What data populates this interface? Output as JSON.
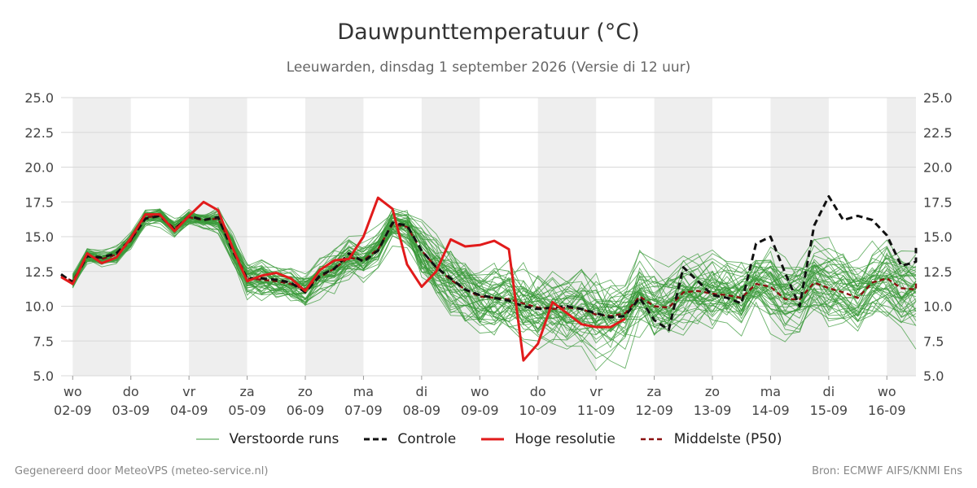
{
  "header": {
    "title": "Dauwpunttemperatuur (°C)",
    "subtitle": "Leeuwarden, dinsdag  1 september 2026 (Versie di 12 uur)"
  },
  "footer": {
    "left": "Gegenereerd door MeteoVPS (meteo-service.nl)",
    "right": "Bron: ECMWF AIFS/KNMI Ens"
  },
  "legend": {
    "items": [
      {
        "label": "Verstoorde runs",
        "color": "#3a9a3a",
        "style": "thin"
      },
      {
        "label": "Controle",
        "color": "#111111",
        "style": "dashed"
      },
      {
        "label": "Hoge resolutie",
        "color": "#e11b1b",
        "style": "solid"
      },
      {
        "label": "Middelste (P50)",
        "color": "#8b1010",
        "style": "dashed"
      }
    ]
  },
  "chart_data": {
    "type": "line",
    "title": "Dauwpunttemperatuur (°C)",
    "ylim": [
      5.0,
      25.0
    ],
    "yticks": [
      "5.0",
      "7.5",
      "10.0",
      "12.5",
      "15.0",
      "17.5",
      "20.0",
      "22.5",
      "25.0"
    ],
    "x_start_day": -0.2,
    "x_end_day": 14.5,
    "day_labels": [
      {
        "dow": "wo",
        "date": "02-09"
      },
      {
        "dow": "do",
        "date": "03-09"
      },
      {
        "dow": "vr",
        "date": "04-09"
      },
      {
        "dow": "za",
        "date": "05-09"
      },
      {
        "dow": "zo",
        "date": "06-09"
      },
      {
        "dow": "ma",
        "date": "07-09"
      },
      {
        "dow": "di",
        "date": "08-09"
      },
      {
        "dow": "wo",
        "date": "09-09"
      },
      {
        "dow": "do",
        "date": "10-09"
      },
      {
        "dow": "vr",
        "date": "11-09"
      },
      {
        "dow": "za",
        "date": "12-09"
      },
      {
        "dow": "zo",
        "date": "13-09"
      },
      {
        "dow": "ma",
        "date": "14-09"
      },
      {
        "dow": "di",
        "date": "15-09"
      },
      {
        "dow": "wo",
        "date": "16-09"
      }
    ],
    "grid": true,
    "legend_position": "bottom",
    "series": [
      {
        "name": "Controle",
        "color": "#111111",
        "style": "dashed",
        "points": [
          [
            -0.25,
            12.3
          ],
          [
            -0.0,
            11.7
          ],
          [
            0.25,
            13.6
          ],
          [
            0.5,
            13.5
          ],
          [
            0.75,
            13.8
          ],
          [
            1.0,
            14.8
          ],
          [
            1.25,
            16.3
          ],
          [
            1.5,
            16.5
          ],
          [
            1.75,
            15.5
          ],
          [
            2.0,
            16.5
          ],
          [
            2.25,
            16.2
          ],
          [
            2.5,
            16.4
          ],
          [
            2.75,
            14.0
          ],
          [
            3.0,
            12.0
          ],
          [
            3.25,
            12.0
          ],
          [
            3.5,
            11.9
          ],
          [
            3.75,
            11.7
          ],
          [
            4.0,
            11.0
          ],
          [
            4.25,
            12.2
          ],
          [
            4.5,
            12.7
          ],
          [
            4.75,
            13.8
          ],
          [
            5.0,
            13.2
          ],
          [
            5.25,
            14.0
          ],
          [
            5.5,
            16.0
          ],
          [
            5.75,
            15.8
          ],
          [
            6.0,
            14.0
          ],
          [
            6.25,
            12.8
          ],
          [
            6.5,
            12.0
          ],
          [
            6.75,
            11.2
          ],
          [
            7.0,
            10.8
          ],
          [
            7.25,
            10.6
          ],
          [
            7.5,
            10.4
          ],
          [
            7.75,
            10.0
          ],
          [
            8.0,
            9.8
          ],
          [
            8.25,
            9.9
          ],
          [
            8.5,
            10.0
          ],
          [
            8.75,
            9.8
          ],
          [
            9.0,
            9.5
          ],
          [
            9.25,
            9.2
          ],
          [
            9.5,
            9.3
          ],
          [
            9.75,
            10.6
          ],
          [
            10.0,
            9.0
          ],
          [
            10.25,
            8.3
          ],
          [
            10.5,
            12.8
          ],
          [
            10.75,
            11.8
          ],
          [
            11.0,
            10.8
          ],
          [
            11.25,
            10.6
          ],
          [
            11.5,
            10.2
          ],
          [
            11.75,
            14.5
          ],
          [
            12.0,
            15.0
          ],
          [
            12.25,
            12.4
          ],
          [
            12.5,
            10.0
          ],
          [
            12.75,
            15.8
          ],
          [
            13.0,
            17.9
          ],
          [
            13.25,
            16.2
          ],
          [
            13.5,
            16.5
          ],
          [
            13.75,
            16.2
          ],
          [
            14.0,
            15.1
          ],
          [
            14.25,
            12.9
          ],
          [
            14.5,
            13.2
          ],
          [
            14.75,
            14.2
          ]
        ]
      },
      {
        "name": "Hoge resolutie",
        "color": "#e11b1b",
        "style": "solid",
        "points": [
          [
            -0.25,
            12.1
          ],
          [
            -0.0,
            11.6
          ],
          [
            0.25,
            13.8
          ],
          [
            0.5,
            13.1
          ],
          [
            0.75,
            13.5
          ],
          [
            1.0,
            14.9
          ],
          [
            1.25,
            16.6
          ],
          [
            1.5,
            16.6
          ],
          [
            1.75,
            15.4
          ],
          [
            2.0,
            16.5
          ],
          [
            2.25,
            17.5
          ],
          [
            2.5,
            16.9
          ],
          [
            2.75,
            14.2
          ],
          [
            3.0,
            11.8
          ],
          [
            3.25,
            12.2
          ],
          [
            3.5,
            12.4
          ],
          [
            3.75,
            12.0
          ],
          [
            4.0,
            11.1
          ],
          [
            4.25,
            12.6
          ],
          [
            4.5,
            13.3
          ],
          [
            4.75,
            13.4
          ],
          [
            5.0,
            15.0
          ],
          [
            5.25,
            17.8
          ],
          [
            5.5,
            17.0
          ],
          [
            5.75,
            13.0
          ],
          [
            6.0,
            11.4
          ],
          [
            6.25,
            12.5
          ],
          [
            6.5,
            14.8
          ],
          [
            6.75,
            14.3
          ],
          [
            7.0,
            14.4
          ],
          [
            7.25,
            14.7
          ],
          [
            7.5,
            14.1
          ],
          [
            7.75,
            6.1
          ],
          [
            8.0,
            7.3
          ],
          [
            8.25,
            10.3
          ],
          [
            8.5,
            9.5
          ],
          [
            8.75,
            8.7
          ],
          [
            9.0,
            8.5
          ],
          [
            9.25,
            8.5
          ],
          [
            9.5,
            9.1
          ]
        ]
      },
      {
        "name": "Middelste (P50)",
        "color": "#8b1010",
        "style": "dashed",
        "points": [
          [
            -0.25,
            12.2
          ],
          [
            -0.0,
            11.8
          ],
          [
            0.25,
            13.6
          ],
          [
            0.5,
            13.4
          ],
          [
            0.75,
            13.7
          ],
          [
            1.0,
            14.7
          ],
          [
            1.25,
            16.4
          ],
          [
            1.5,
            16.5
          ],
          [
            1.75,
            15.6
          ],
          [
            2.0,
            16.4
          ],
          [
            2.25,
            16.2
          ],
          [
            2.5,
            16.3
          ],
          [
            2.75,
            14.2
          ],
          [
            3.0,
            12.0
          ],
          [
            3.25,
            11.9
          ],
          [
            3.5,
            11.8
          ],
          [
            3.75,
            11.6
          ],
          [
            4.0,
            11.2
          ],
          [
            4.25,
            12.1
          ],
          [
            4.5,
            12.7
          ],
          [
            4.75,
            13.5
          ],
          [
            5.0,
            13.3
          ],
          [
            5.25,
            14.1
          ],
          [
            5.5,
            15.9
          ],
          [
            5.75,
            15.7
          ],
          [
            6.0,
            14.0
          ],
          [
            6.25,
            12.8
          ],
          [
            6.5,
            11.9
          ],
          [
            6.75,
            11.2
          ],
          [
            7.0,
            10.7
          ],
          [
            7.25,
            10.6
          ],
          [
            7.5,
            10.5
          ],
          [
            7.75,
            10.2
          ],
          [
            8.0,
            9.9
          ],
          [
            8.25,
            9.8
          ],
          [
            8.5,
            9.9
          ],
          [
            8.75,
            9.8
          ],
          [
            9.0,
            9.4
          ],
          [
            9.25,
            9.3
          ],
          [
            9.5,
            9.5
          ],
          [
            9.75,
            10.7
          ],
          [
            10.0,
            10.0
          ],
          [
            10.25,
            9.9
          ],
          [
            10.5,
            11.0
          ],
          [
            10.75,
            11.1
          ],
          [
            11.0,
            10.9
          ],
          [
            11.25,
            10.8
          ],
          [
            11.5,
            10.6
          ],
          [
            11.75,
            11.6
          ],
          [
            12.0,
            11.4
          ],
          [
            12.25,
            10.5
          ],
          [
            12.5,
            10.5
          ],
          [
            12.75,
            11.7
          ],
          [
            13.0,
            11.3
          ],
          [
            13.25,
            11.0
          ],
          [
            13.5,
            10.6
          ],
          [
            13.75,
            11.7
          ],
          [
            14.0,
            12.0
          ],
          [
            14.25,
            11.3
          ],
          [
            14.5,
            11.2
          ],
          [
            14.75,
            11.8
          ]
        ]
      }
    ]
  }
}
